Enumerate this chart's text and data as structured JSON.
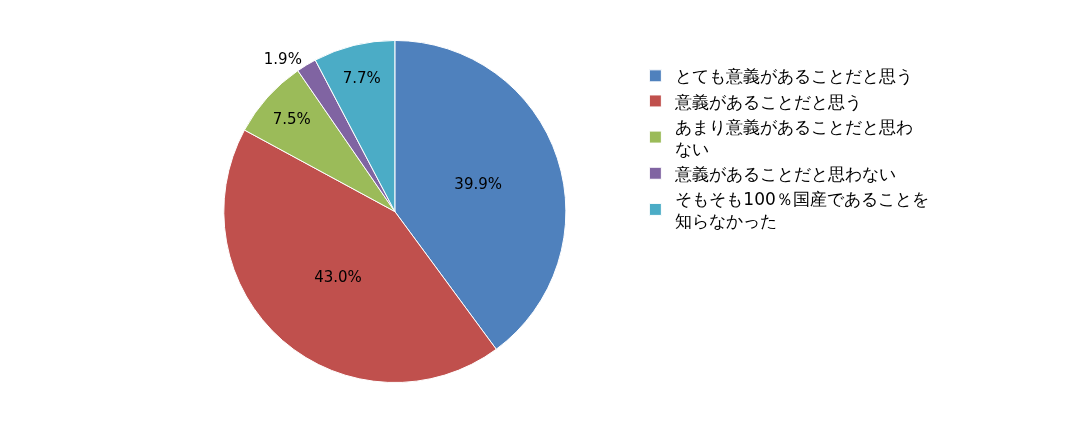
{
  "chart_data": {
    "type": "pie",
    "categories": [
      "とても意義があることだと思う",
      "意義があることだと思う",
      "あまり意義があることだと思わない",
      "意義があることだと思わない",
      "そもそも100％国産であることを知らなかった"
    ],
    "values": [
      39.9,
      43.0,
      7.5,
      1.9,
      7.7
    ],
    "colors": [
      "#4f81bd",
      "#c0504d",
      "#9bbb59",
      "#8064a2",
      "#4bacc6"
    ],
    "value_labels": [
      "39.9%",
      "43.0%",
      "7.5%",
      "1.9%",
      "7.7%"
    ],
    "legend": "right"
  }
}
